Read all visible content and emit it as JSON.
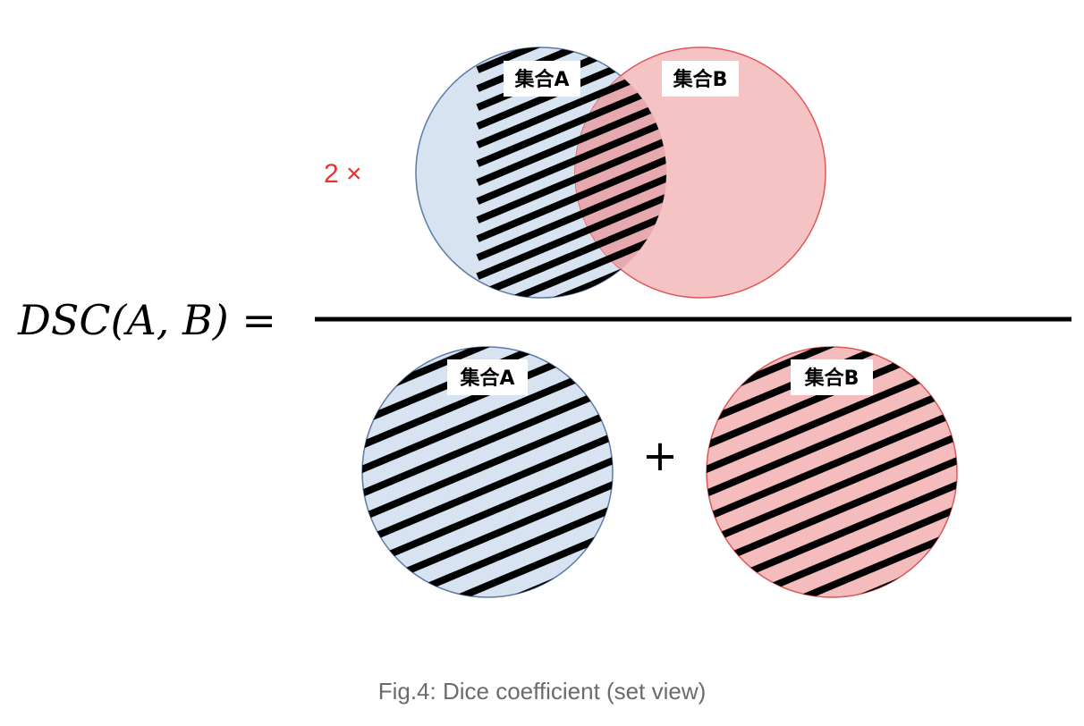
{
  "formula": {
    "lhs": "DSC(A, B) =",
    "factor": "2 ×",
    "plus": "+"
  },
  "sets": {
    "a": {
      "label": "集合A"
    },
    "b": {
      "label": "集合B"
    }
  },
  "caption": "Fig.4: Dice coefficient (set view)",
  "colors": {
    "set_a_fill": "#d7e3f1",
    "set_a_stroke": "#5a79a6",
    "set_b_fill": "#f4bcbc",
    "set_b_stroke": "#e05656",
    "factor": "#e8332f",
    "hatch": "#000000"
  }
}
